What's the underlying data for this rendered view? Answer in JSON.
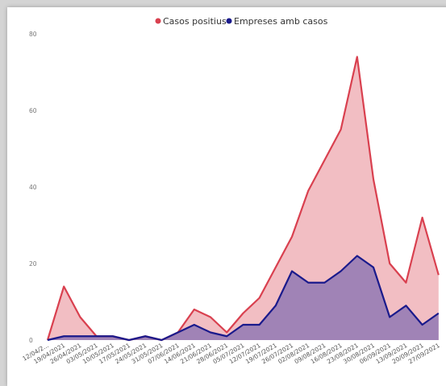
{
  "chart_data": {
    "type": "area",
    "title": "",
    "xlabel": "",
    "ylabel": "",
    "ylim": [
      0,
      80
    ],
    "yticks": [
      0,
      20,
      40,
      60,
      80
    ],
    "grid": false,
    "legend_placement": "top-center",
    "categories": [
      "12/04/2021",
      "19/04/2021",
      "26/04/2021",
      "03/05/2021",
      "10/05/2021",
      "17/05/2021",
      "24/05/2021",
      "31/05/2021",
      "07/06/2021",
      "14/06/2021",
      "21/06/2021",
      "28/06/2021",
      "05/07/2021",
      "12/07/2021",
      "19/07/2021",
      "26/07/2021",
      "02/08/2021",
      "09/08/2021",
      "16/08/2021",
      "23/08/2021",
      "30/08/2021",
      "06/09/2021",
      "13/09/2021",
      "20/09/2021",
      "27/09/2021"
    ],
    "tick_labels": [
      "12/04/2...",
      "19/04/2021",
      "26/04/2021",
      "03/05/2021",
      "10/05/2021",
      "17/05/2021",
      "24/05/2021",
      "31/05/2021",
      "07/06/2021",
      "14/06/2021",
      "21/06/2021",
      "28/06/2021",
      "05/07/2021",
      "12/07/2021",
      "19/07/2021",
      "26/07/2021",
      "02/08/2021",
      "09/08/2021",
      "16/08/2021",
      "23/08/2021",
      "30/08/2021",
      "06/09/2021",
      "13/09/2021",
      "20/09/2021",
      "27/09/2021"
    ],
    "series": [
      {
        "name": "Casos positius",
        "color": "#d9404f",
        "fill": "#f0b3b9",
        "values": [
          0,
          14,
          6,
          1,
          1,
          0,
          1,
          0,
          2,
          8,
          6,
          2,
          7,
          11,
          19,
          27,
          39,
          47,
          55,
          74,
          42,
          20,
          15,
          32,
          17
        ]
      },
      {
        "name": "Empreses amb casos",
        "color": "#1a1a8c",
        "fill": "#9b7fb5",
        "values": [
          0,
          1,
          1,
          1,
          1,
          0,
          1,
          0,
          2,
          4,
          2,
          1,
          4,
          4,
          9,
          18,
          15,
          15,
          18,
          22,
          19,
          6,
          9,
          4,
          7
        ]
      }
    ]
  }
}
